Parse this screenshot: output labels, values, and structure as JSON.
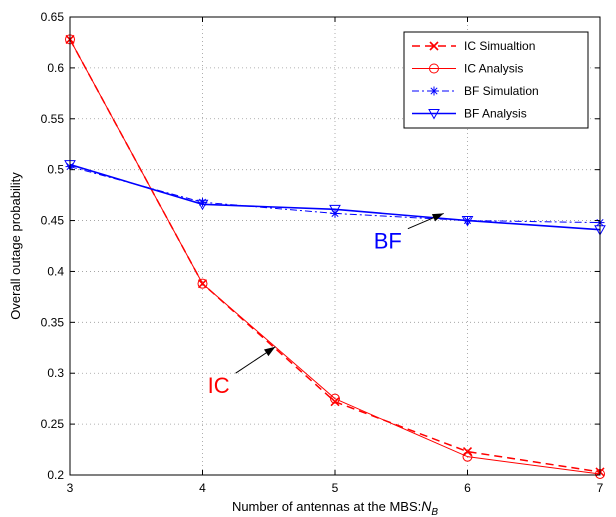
{
  "chart_data": {
    "type": "line",
    "xlabel": "Number of antennas at the MBS:",
    "xlabel_symbol": "N",
    "xlabel_subscript": "B",
    "ylabel": "Overall outage probability",
    "xlim": [
      3,
      7
    ],
    "ylim": [
      0.2,
      0.65
    ],
    "x_ticks": [
      "3",
      "4",
      "5",
      "6",
      "7"
    ],
    "y_ticks": [
      "0.2",
      "0.25",
      "0.3",
      "0.35",
      "0.4",
      "0.45",
      "0.5",
      "0.55",
      "0.6",
      "0.65"
    ],
    "grid": true,
    "legend_position": "top-right",
    "x": [
      3,
      4,
      5,
      6,
      7
    ],
    "series": [
      {
        "name": "IC Simualtion",
        "color": "#ff0000",
        "line": "dashed",
        "marker": "x",
        "values": [
          0.628,
          0.388,
          0.272,
          0.223,
          0.203
        ]
      },
      {
        "name": "IC Analysis",
        "color": "#ff0000",
        "line": "solid",
        "marker": "circle",
        "values": [
          0.628,
          0.388,
          0.275,
          0.218,
          0.201
        ]
      },
      {
        "name": "BF Simulation",
        "color": "#0000ff",
        "line": "dashdot",
        "marker": "asterisk",
        "values": [
          0.503,
          0.468,
          0.457,
          0.45,
          0.448
        ]
      },
      {
        "name": "BF Analysis",
        "color": "#0000ff",
        "line": "solid",
        "marker": "triangle-down",
        "values": [
          0.505,
          0.466,
          0.461,
          0.45,
          0.441
        ]
      }
    ],
    "annotations": [
      {
        "text": "BF",
        "color": "#0000ff",
        "arrow_from": [
          5.55,
          0.442
        ],
        "arrow_to": [
          5.82,
          0.457
        ]
      },
      {
        "text": "IC",
        "color": "#ff0000",
        "arrow_from": [
          4.25,
          0.3
        ],
        "arrow_to": [
          4.55,
          0.326
        ]
      }
    ]
  }
}
